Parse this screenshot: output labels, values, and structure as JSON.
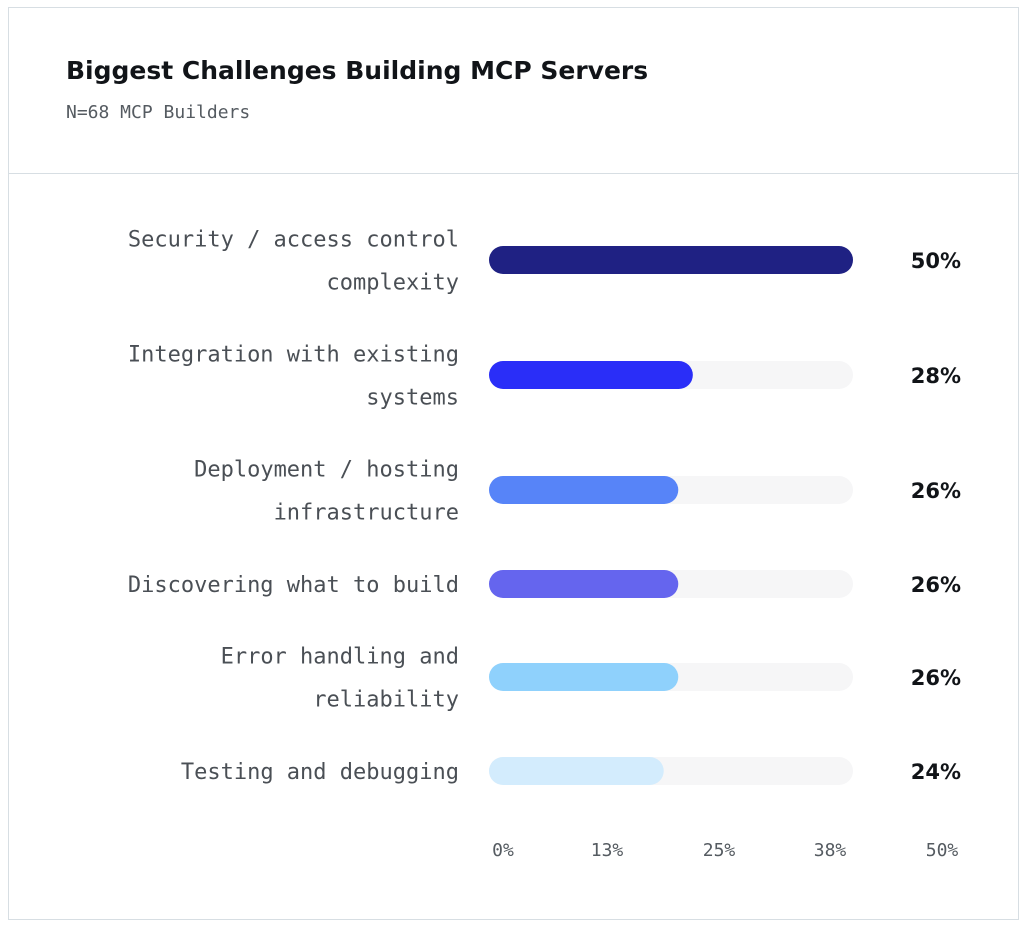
{
  "header": {
    "title": "Biggest Challenges Building MCP Servers",
    "subtitle": "N=68 MCP Builders"
  },
  "chart_data": {
    "type": "bar",
    "orientation": "horizontal",
    "title": "Biggest Challenges Building MCP Servers",
    "subtitle": "N=68 MCP Builders",
    "categories": [
      [
        "Security / access control",
        "complexity"
      ],
      [
        "Integration with existing",
        "systems"
      ],
      [
        "Deployment / hosting",
        "infrastructure"
      ],
      [
        "Discovering what to build"
      ],
      [
        "Error handling and",
        "reliability"
      ],
      [
        "Testing and debugging"
      ]
    ],
    "values": [
      50,
      28,
      26,
      26,
      26,
      24
    ],
    "value_labels": [
      "50%",
      "28%",
      "26%",
      "26%",
      "26%",
      "24%"
    ],
    "colors": [
      "#1f2183",
      "#2a2ef8",
      "#5784f8",
      "#6565ee",
      "#8fd1fc",
      "#d3ecfd"
    ],
    "track_color": "#f6f6f7",
    "xlim": [
      0,
      50
    ],
    "xticks": [
      "0%",
      "13%",
      "25%",
      "38%",
      "50%"
    ],
    "grid": false,
    "legend": "none"
  }
}
